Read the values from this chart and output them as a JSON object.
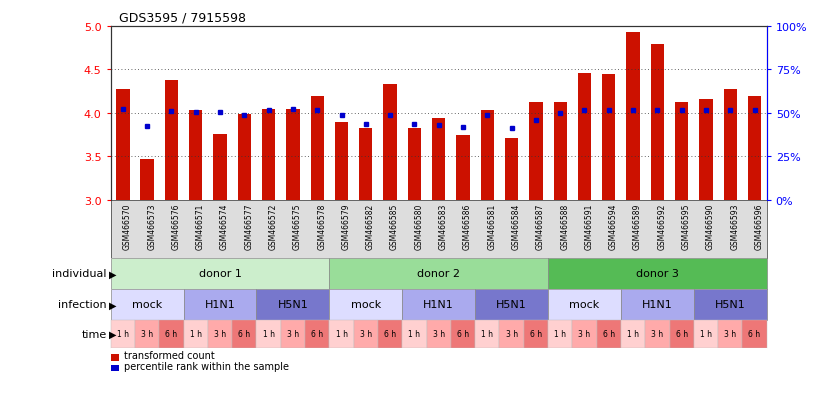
{
  "title": "GDS3595 / 7915598",
  "samples": [
    "GSM466570",
    "GSM466573",
    "GSM466576",
    "GSM466571",
    "GSM466574",
    "GSM466577",
    "GSM466572",
    "GSM466575",
    "GSM466578",
    "GSM466579",
    "GSM466582",
    "GSM466585",
    "GSM466580",
    "GSM466583",
    "GSM466586",
    "GSM466581",
    "GSM466584",
    "GSM466587",
    "GSM466588",
    "GSM466591",
    "GSM466594",
    "GSM466589",
    "GSM466592",
    "GSM466595",
    "GSM466590",
    "GSM466593",
    "GSM466596"
  ],
  "bar_values": [
    4.28,
    3.47,
    4.38,
    4.03,
    3.76,
    3.99,
    4.04,
    4.04,
    4.19,
    3.89,
    3.82,
    4.33,
    3.82,
    3.94,
    3.74,
    4.03,
    3.71,
    4.13,
    4.13,
    4.46,
    4.45,
    4.93,
    4.79,
    4.13,
    4.16,
    4.28,
    4.19
  ],
  "percentile_values": [
    4.05,
    3.85,
    4.02,
    4.01,
    4.01,
    3.97,
    4.03,
    4.04,
    4.03,
    3.97,
    3.87,
    3.97,
    3.87,
    3.86,
    3.84,
    3.98,
    3.82,
    3.92,
    4.0,
    4.03,
    4.03,
    4.03,
    4.03,
    4.03,
    4.03,
    4.03,
    4.03
  ],
  "bar_color": "#cc1100",
  "percentile_color": "#0000cc",
  "ymin": 3.0,
  "ymax": 5.0,
  "yticks": [
    3.0,
    3.5,
    4.0,
    4.5,
    5.0
  ],
  "right_ytick_pcts": [
    0,
    25,
    50,
    75,
    100
  ],
  "right_yticklabels": [
    "0%",
    "25%",
    "50%",
    "75%",
    "100%"
  ],
  "individual_groups": [
    {
      "label": "donor 1",
      "start": 0,
      "end": 8,
      "color": "#cceecc"
    },
    {
      "label": "donor 2",
      "start": 9,
      "end": 17,
      "color": "#99dd99"
    },
    {
      "label": "donor 3",
      "start": 18,
      "end": 26,
      "color": "#55bb55"
    }
  ],
  "infection_groups": [
    {
      "label": "mock",
      "start": 0,
      "end": 2,
      "color": "#ddddff"
    },
    {
      "label": "H1N1",
      "start": 3,
      "end": 5,
      "color": "#aaaaee"
    },
    {
      "label": "H5N1",
      "start": 6,
      "end": 8,
      "color": "#7777cc"
    },
    {
      "label": "mock",
      "start": 9,
      "end": 11,
      "color": "#ddddff"
    },
    {
      "label": "H1N1",
      "start": 12,
      "end": 14,
      "color": "#aaaaee"
    },
    {
      "label": "H5N1",
      "start": 15,
      "end": 17,
      "color": "#7777cc"
    },
    {
      "label": "mock",
      "start": 18,
      "end": 20,
      "color": "#ddddff"
    },
    {
      "label": "H1N1",
      "start": 21,
      "end": 23,
      "color": "#aaaaee"
    },
    {
      "label": "H5N1",
      "start": 24,
      "end": 26,
      "color": "#7777cc"
    }
  ],
  "time_labels": [
    "1 h",
    "3 h",
    "6 h",
    "1 h",
    "3 h",
    "6 h",
    "1 h",
    "3 h",
    "6 h",
    "1 h",
    "3 h",
    "6 h",
    "1 h",
    "3 h",
    "6 h",
    "1 h",
    "3 h",
    "6 h",
    "1 h",
    "3 h",
    "6 h",
    "1 h",
    "3 h",
    "6 h",
    "1 h",
    "3 h",
    "6 h"
  ],
  "time_colors": [
    "#ffd0d0",
    "#ffaaaa",
    "#ee7777",
    "#ffd0d0",
    "#ffaaaa",
    "#ee7777",
    "#ffd0d0",
    "#ffaaaa",
    "#ee7777",
    "#ffd0d0",
    "#ffaaaa",
    "#ee7777",
    "#ffd0d0",
    "#ffaaaa",
    "#ee7777",
    "#ffd0d0",
    "#ffaaaa",
    "#ee7777",
    "#ffd0d0",
    "#ffaaaa",
    "#ee7777",
    "#ffd0d0",
    "#ffaaaa",
    "#ee7777",
    "#ffd0d0",
    "#ffaaaa",
    "#ee7777"
  ],
  "xtick_bg": "#dddddd",
  "legend_bar_label": "transformed count",
  "legend_pct_label": "percentile rank within the sample",
  "row_labels": [
    "individual",
    "infection",
    "time"
  ],
  "bg_color": "#ffffff"
}
